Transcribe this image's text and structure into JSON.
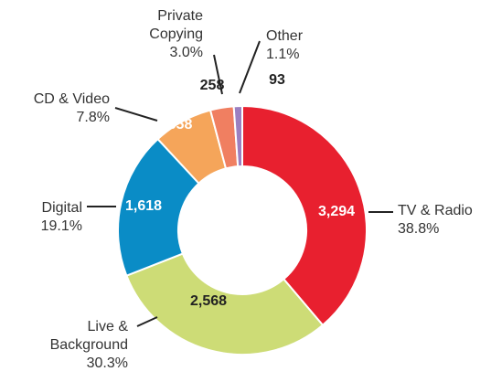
{
  "chart_data": {
    "type": "donut",
    "categories": [
      "TV & Radio",
      "Live & Background",
      "Digital",
      "CD & Video",
      "Private Copying",
      "Other"
    ],
    "values": [
      3294,
      2568,
      1618,
      658,
      258,
      93
    ],
    "value_labels": [
      "3,294",
      "2,568",
      "1,618",
      "658",
      "258",
      "93"
    ],
    "shares": [
      38.8,
      30.3,
      19.1,
      7.8,
      3.0,
      1.1
    ],
    "share_labels": [
      "38.8%",
      "30.3%",
      "19.1%",
      "7.8%",
      "3.0%",
      "1.1%"
    ],
    "colors": [
      "#e8202f",
      "#cddc76",
      "#0a8cc6",
      "#f5a55a",
      "#f07f61",
      "#9b7fc0"
    ]
  }
}
